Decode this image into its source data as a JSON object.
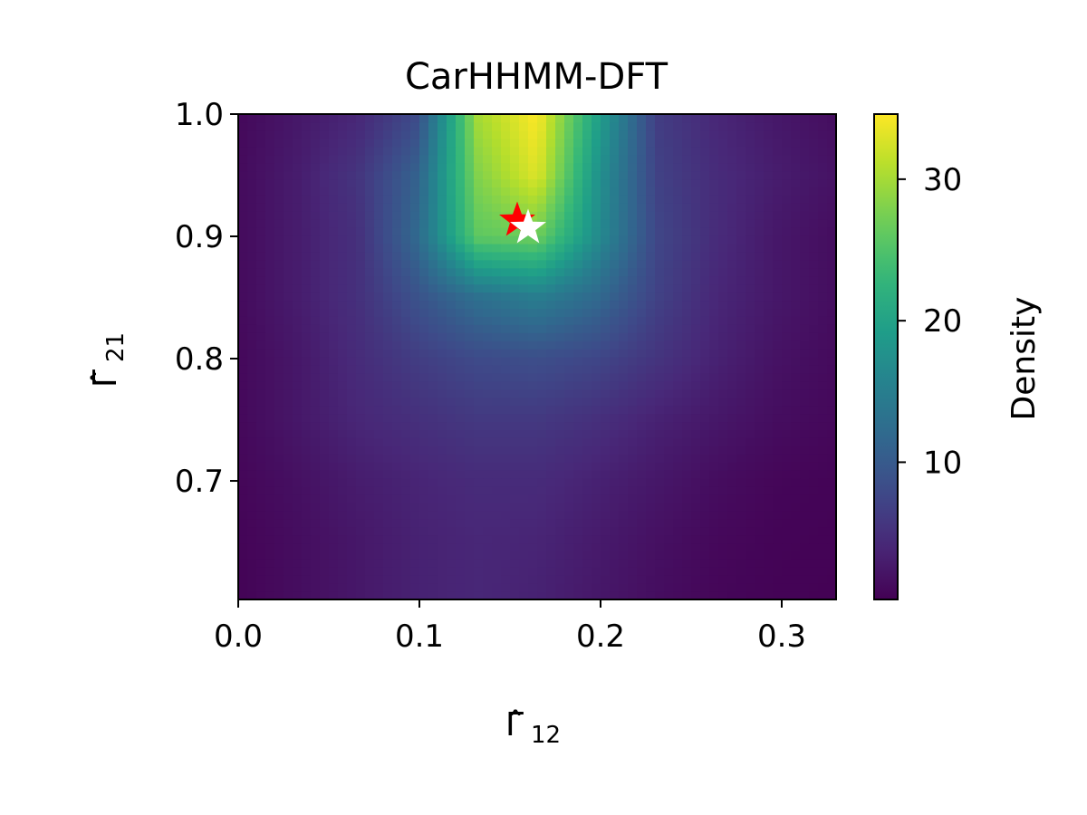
{
  "chart_data": {
    "type": "heatmap",
    "title": "CarHHMM-DFT",
    "xlabel": {
      "base": "Γ̂",
      "sub": "12"
    },
    "ylabel": {
      "base": "Γ̂",
      "sub": "21"
    },
    "xlim": [
      0.0,
      0.33
    ],
    "ylim": [
      0.603,
      1.0
    ],
    "x_ticks": [
      0.0,
      0.1,
      0.2,
      0.3
    ],
    "x_tick_labels": [
      "0.0",
      "0.1",
      "0.2",
      "0.3"
    ],
    "y_ticks": [
      0.7,
      0.8,
      0.9,
      1.0
    ],
    "y_tick_labels": [
      "0.7",
      "0.8",
      "0.9",
      "1.0"
    ],
    "colormap": "viridis",
    "colorbar": {
      "label": "Density",
      "range": [
        0.3,
        34.6
      ],
      "ticks": [
        10,
        20,
        30
      ],
      "tick_labels": [
        "10",
        "20",
        "30"
      ]
    },
    "density_grid": {
      "x": [
        0.0,
        0.033,
        0.066,
        0.099,
        0.132,
        0.165,
        0.198,
        0.231,
        0.264,
        0.297,
        0.33
      ],
      "y": [
        0.603,
        0.652,
        0.702,
        0.751,
        0.801,
        0.851,
        0.9,
        0.95,
        1.0
      ],
      "values": [
        [
          0.5,
          1.5,
          2.5,
          3.5,
          4.0,
          3.5,
          2.5,
          1.5,
          0.8,
          0.5,
          0.4
        ],
        [
          0.6,
          1.5,
          2.5,
          3.5,
          4.0,
          3.8,
          2.8,
          1.8,
          1.0,
          0.6,
          0.5
        ],
        [
          0.8,
          1.8,
          3.0,
          3.8,
          4.5,
          4.5,
          3.5,
          2.5,
          1.5,
          0.8,
          0.6
        ],
        [
          1.0,
          2.5,
          4.0,
          5.0,
          6.0,
          6.0,
          5.0,
          3.5,
          2.5,
          1.5,
          1.0
        ],
        [
          1.0,
          2.5,
          4.5,
          6.5,
          8.0,
          8.5,
          7.5,
          5.5,
          3.5,
          2.0,
          1.2
        ],
        [
          1.2,
          3.0,
          5.0,
          9.0,
          13.0,
          15.0,
          12.0,
          7.0,
          4.0,
          2.5,
          1.5
        ],
        [
          1.2,
          3.0,
          5.0,
          12.0,
          26.0,
          27.0,
          17.0,
          7.5,
          4.5,
          2.5,
          1.5
        ],
        [
          1.2,
          3.0,
          5.5,
          11.0,
          28.0,
          33.0,
          18.0,
          7.0,
          4.5,
          3.0,
          2.0
        ],
        [
          1.0,
          2.5,
          4.0,
          8.0,
          30.0,
          34.6,
          20.0,
          6.5,
          4.0,
          2.5,
          1.5
        ]
      ]
    },
    "markers": [
      {
        "name": "red-star",
        "shape": "star",
        "color": "#ff0000",
        "x": 0.154,
        "y": 0.913
      },
      {
        "name": "white-star",
        "shape": "star",
        "color": "#ffffff",
        "x": 0.16,
        "y": 0.907
      }
    ]
  }
}
